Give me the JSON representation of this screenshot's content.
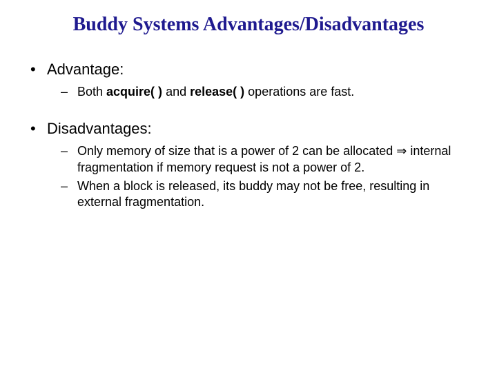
{
  "slide": {
    "title": "Buddy Systems Advantages/Disadvantages",
    "title_color": "#1f1a8f",
    "title_fontsize": 28,
    "title_font": "Times New Roman",
    "body_fontsize_l1": 22,
    "body_fontsize_l2": 18,
    "body_color": "#000000",
    "background_color": "#ffffff",
    "bullet_l1_char": "•",
    "bullet_l2_char": "–",
    "arrow_char": "⇒",
    "sections": [
      {
        "heading": "Advantage:",
        "items": [
          {
            "parts": [
              {
                "text": "Both ",
                "bold": false
              },
              {
                "text": "acquire( ) ",
                "bold": true
              },
              {
                "text": "and ",
                "bold": false
              },
              {
                "text": "release( ) ",
                "bold": true
              },
              {
                "text": "operations are fast.",
                "bold": false
              }
            ]
          }
        ]
      },
      {
        "heading": "Disadvantages:",
        "items": [
          {
            "parts": [
              {
                "text": "Only memory of size that is a power of 2 can be allocated ",
                "bold": false
              },
              {
                "text": "⇒",
                "bold": false,
                "arrow": true
              },
              {
                "text": " internal fragmentation if memory request is not a power of 2.",
                "bold": false
              }
            ]
          },
          {
            "parts": [
              {
                "text": "When a block is released, its buddy may not be free, resulting in external fragmentation.",
                "bold": false
              }
            ]
          }
        ]
      }
    ]
  }
}
